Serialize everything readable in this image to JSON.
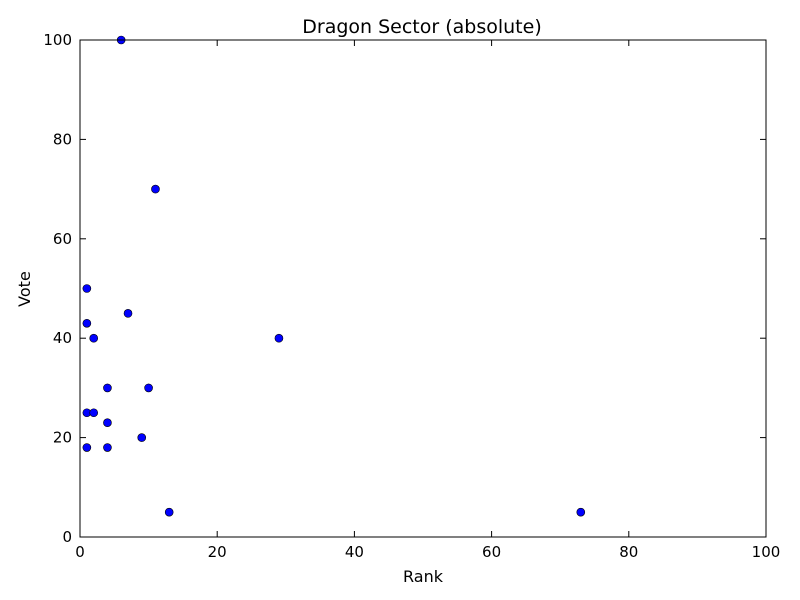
{
  "chart_data": {
    "type": "scatter",
    "title": "Dragon Sector (absolute)",
    "xlabel": "Rank",
    "ylabel": "Vote",
    "xlim": [
      0,
      100
    ],
    "ylim": [
      0,
      100
    ],
    "xticks": [
      0,
      20,
      40,
      60,
      80,
      100
    ],
    "yticks": [
      0,
      20,
      40,
      60,
      80,
      100
    ],
    "grid": false,
    "series": [
      {
        "color": "#0000ff",
        "points": [
          {
            "x": 6,
            "y": 100
          },
          {
            "x": 11,
            "y": 70
          },
          {
            "x": 1,
            "y": 50
          },
          {
            "x": 7,
            "y": 45
          },
          {
            "x": 1,
            "y": 43
          },
          {
            "x": 2,
            "y": 40
          },
          {
            "x": 29,
            "y": 40
          },
          {
            "x": 4,
            "y": 30
          },
          {
            "x": 10,
            "y": 30
          },
          {
            "x": 1,
            "y": 25
          },
          {
            "x": 2,
            "y": 25
          },
          {
            "x": 4,
            "y": 23
          },
          {
            "x": 9,
            "y": 20
          },
          {
            "x": 1,
            "y": 18
          },
          {
            "x": 4,
            "y": 18
          },
          {
            "x": 13,
            "y": 5
          },
          {
            "x": 73,
            "y": 5
          }
        ]
      }
    ]
  }
}
